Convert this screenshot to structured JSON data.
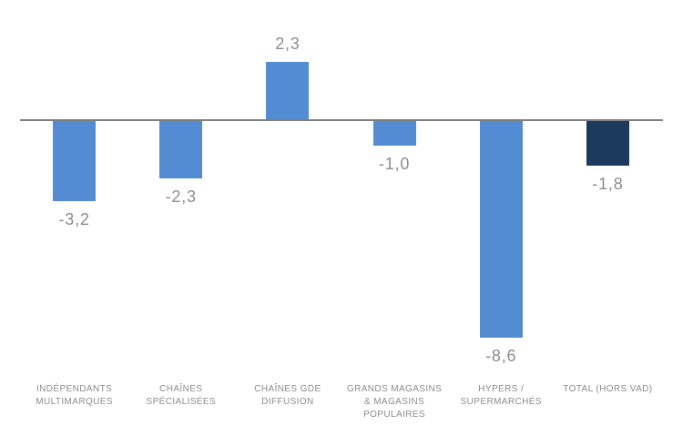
{
  "chart_data": {
    "type": "bar",
    "title": "",
    "xlabel": "",
    "ylabel": "",
    "grid": false,
    "legend": "none",
    "ylim": [
      -9.6,
      3.6
    ],
    "categories": [
      "INDÉPENDANTS\nMULTIMARQUES",
      "CHAÎNES\nSPÉCIALISÉES",
      "CHAÎNES GDE\nDIFFUSION",
      "GRANDS MAGASINS\n& MAGASINS\nPOPULAIRES",
      "HYPERS /\nSUPERMARCHÉS",
      "TOTAL (Hors VAD)"
    ],
    "values": [
      -3.2,
      -2.3,
      2.3,
      -1.0,
      -8.6,
      -1.8
    ],
    "value_labels": [
      "-3,2",
      "-2,3",
      "2,3",
      "-1,0",
      "-8,6",
      "-1,8"
    ],
    "bar_colors": [
      "#548CD3",
      "#548CD3",
      "#548CD3",
      "#548CD3",
      "#548CD3",
      "#1C3A5E"
    ],
    "colors": {
      "bar_blue": "#548CD3",
      "bar_total_navy": "#1C3A5E",
      "axis_line": "#808080",
      "value_text": "#8C8C8C",
      "category_text": "#8C8C8C",
      "background": "#FFFFFF"
    }
  }
}
